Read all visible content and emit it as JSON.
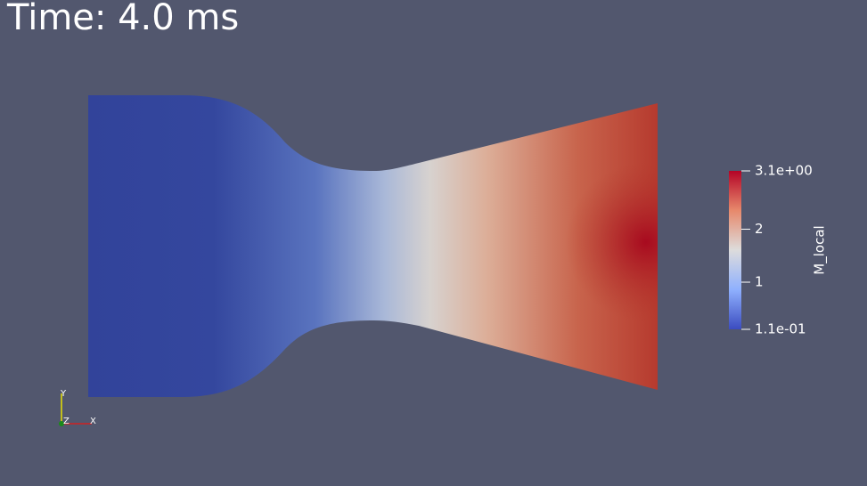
{
  "time_label": "Time: 4.0 ms",
  "colorbar": {
    "title": "M_local",
    "range": [
      0.11,
      3.1
    ],
    "ticks": [
      {
        "value": 3.1,
        "label": "3.1e+00"
      },
      2,
      1,
      {
        "value": 0.11,
        "label": "1.1e-01"
      }
    ]
  },
  "axes": {
    "y": "Y",
    "z": "Z",
    "x": "X"
  }
}
